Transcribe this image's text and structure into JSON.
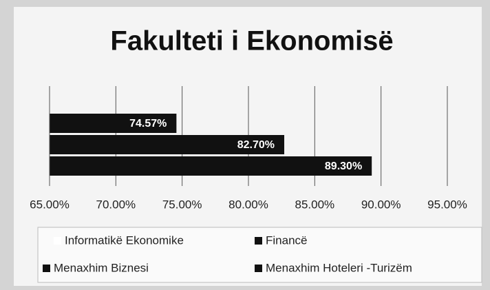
{
  "chart_data": {
    "type": "bar",
    "orientation": "horizontal",
    "title": "Fakulteti i Ekonomisë",
    "series": [
      {
        "name": "Informatikë Ekonomike",
        "color": "#ffffff",
        "values": [
          null
        ]
      },
      {
        "name": "Financë",
        "color": "#111111",
        "values": [
          74.57
        ],
        "value_labels": [
          "74.57%"
        ]
      },
      {
        "name": "Menaxhim Biznesi",
        "color": "#111111",
        "values": [
          82.7
        ],
        "value_labels": [
          "82.70%"
        ]
      },
      {
        "name": "Menaxhim Hoteleri -Turizëm",
        "color": "#111111",
        "values": [
          89.3
        ],
        "value_labels": [
          "89.30%"
        ]
      }
    ],
    "xlim": [
      65,
      95
    ],
    "xticks": [
      {
        "value": 65,
        "label": "65.00%"
      },
      {
        "value": 70,
        "label": "70.00%"
      },
      {
        "value": 75,
        "label": "75.00%"
      },
      {
        "value": 80,
        "label": "80.00%"
      },
      {
        "value": 85,
        "label": "85.00%"
      },
      {
        "value": 90,
        "label": "90.00%"
      },
      {
        "value": 95,
        "label": "95.00%"
      }
    ],
    "grid": true,
    "legend": "bottom"
  }
}
